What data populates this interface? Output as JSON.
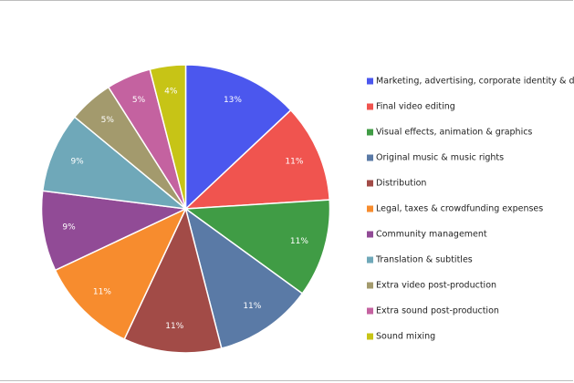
{
  "chart_data": {
    "type": "pie",
    "title": "",
    "legend_position": "right",
    "start_angle_deg": 0,
    "direction": "clockwise",
    "slices": [
      {
        "name": "Marketing, advertising, corporate identity & design",
        "value": 13,
        "label": "13%",
        "color": "#4b57ee"
      },
      {
        "name": "Final video editing",
        "value": 11,
        "label": "11%",
        "color": "#f0544f"
      },
      {
        "name": "Visual effects, animation & graphics",
        "value": 11,
        "label": "11%",
        "color": "#409c45"
      },
      {
        "name": "Original music & music rights",
        "value": 11,
        "label": "11%",
        "color": "#5a7aa6"
      },
      {
        "name": "Distribution",
        "value": 11,
        "label": "11%",
        "color": "#a24b47"
      },
      {
        "name": "Legal, taxes & crowdfunding expenses",
        "value": 11,
        "label": "11%",
        "color": "#f78c2e"
      },
      {
        "name": "Community management",
        "value": 9,
        "label": "9%",
        "color": "#914b96"
      },
      {
        "name": "Translation & subtitles",
        "value": 9,
        "label": "9%",
        "color": "#6fa8b9"
      },
      {
        "name": "Extra video post-production",
        "value": 5,
        "label": "5%",
        "color": "#a39a6d"
      },
      {
        "name": "Extra sound post-production",
        "value": 5,
        "label": "5%",
        "color": "#c462a0"
      },
      {
        "name": "Sound mixing",
        "value": 4,
        "label": "4%",
        "color": "#c7c416"
      }
    ]
  }
}
